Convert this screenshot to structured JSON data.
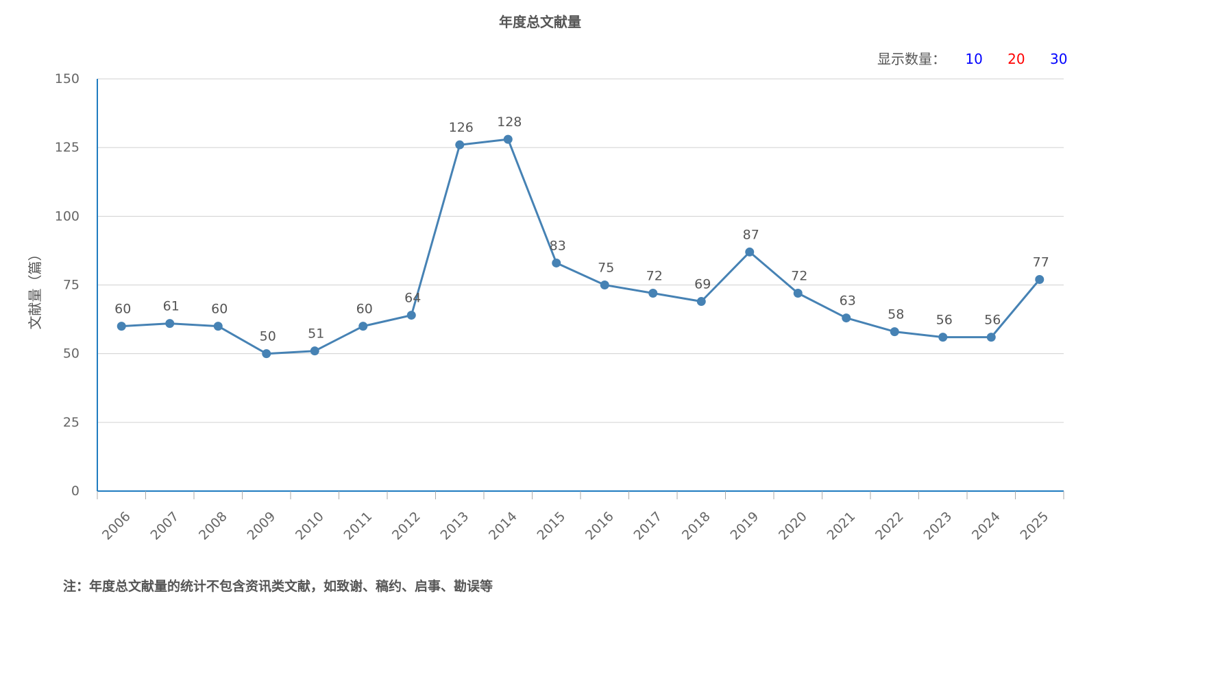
{
  "title": "年度总文献量",
  "display_count": {
    "label": "显示数量：",
    "options": [
      {
        "label": "10",
        "color": "#0000ff"
      },
      {
        "label": "20",
        "color": "#ff0000"
      },
      {
        "label": "30",
        "color": "#0000ff"
      }
    ]
  },
  "footnote": "注：年度总文献量的统计不包含资讯类文献，如致谢、稿约、启事、勘误等",
  "colors": {
    "line": "#4682b4",
    "axis": "#1e7bc0",
    "grid": "#d0d0d0"
  },
  "chart_data": {
    "type": "line",
    "title": "年度总文献量",
    "xlabel": "",
    "ylabel": "文献量（篇）",
    "x": [
      "2006",
      "2007",
      "2008",
      "2009",
      "2010",
      "2011",
      "2012",
      "2013",
      "2014",
      "2015",
      "2016",
      "2017",
      "2018",
      "2019",
      "2020",
      "2021",
      "2022",
      "2023",
      "2024",
      "2025"
    ],
    "values": [
      60,
      61,
      60,
      50,
      51,
      60,
      64,
      126,
      128,
      83,
      75,
      72,
      69,
      87,
      72,
      63,
      58,
      56,
      56,
      77
    ],
    "ylim": [
      0,
      150
    ],
    "yticks": [
      0,
      25,
      50,
      75,
      100,
      125,
      150
    ],
    "grid": true,
    "data_labels": true
  }
}
